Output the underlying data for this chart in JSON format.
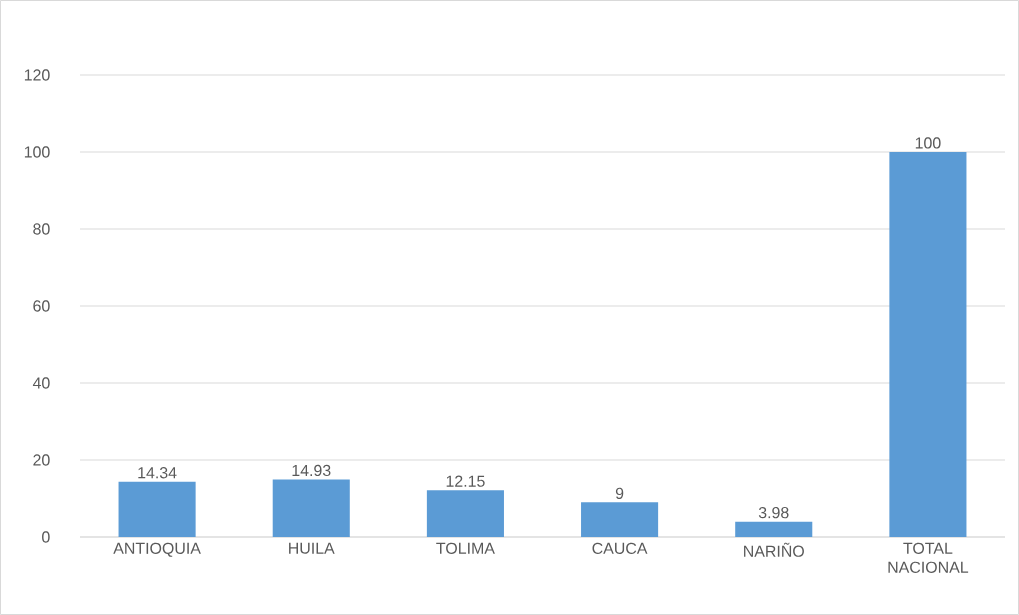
{
  "chart_data": {
    "type": "bar",
    "categories": [
      "ANTIOQUIA",
      "HUILA",
      "TOLIMA",
      "CAUCA",
      "NARIÑO",
      "TOTAL NACIONAL"
    ],
    "values": [
      14.34,
      14.93,
      12.15,
      9,
      3.98,
      100
    ],
    "color": "#5b9bd5",
    "ylim": [
      0,
      120
    ],
    "yticks": [
      0,
      20,
      40,
      60,
      80,
      100,
      120
    ],
    "grid": "y",
    "data_labels": true
  }
}
